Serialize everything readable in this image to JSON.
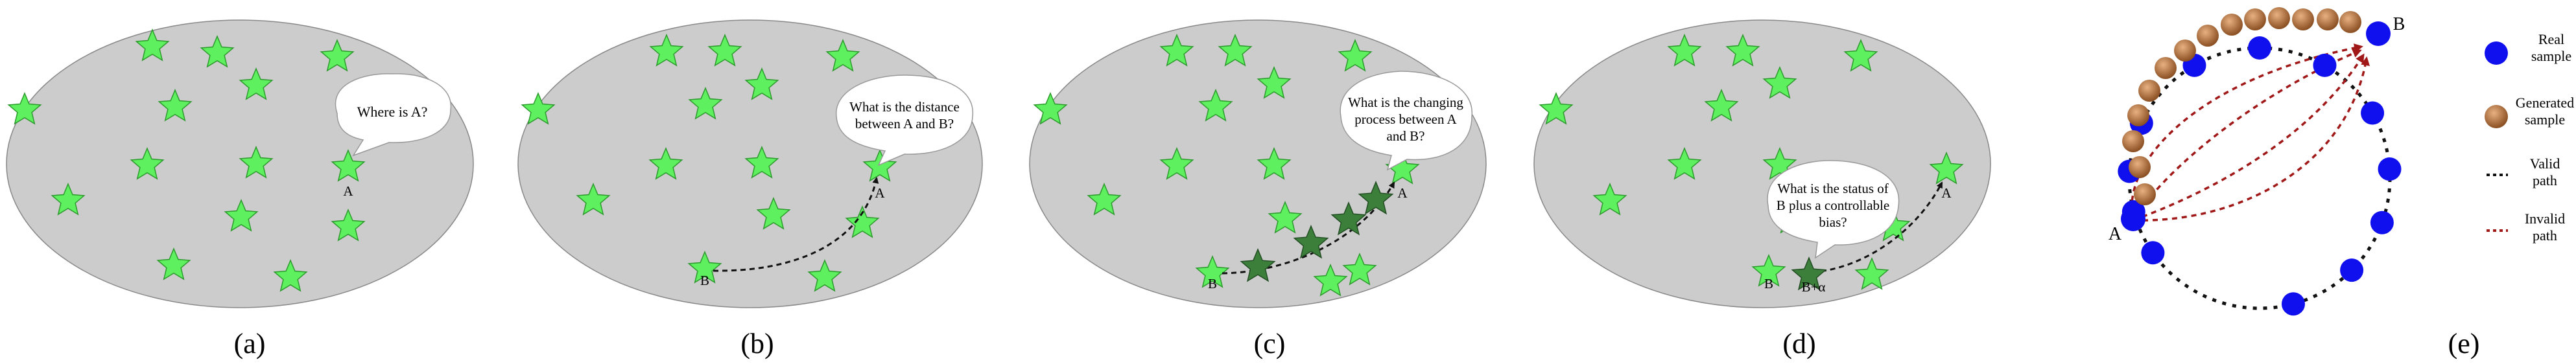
{
  "panels": [
    {
      "caption": "(a)",
      "bubble": [
        "Where is A?"
      ],
      "labels": {
        "A": "A"
      }
    },
    {
      "caption": "(b)",
      "bubble": [
        "What is the distance",
        "between A and B?"
      ],
      "labels": {
        "A": "A",
        "B": "B"
      }
    },
    {
      "caption": "(c)",
      "bubble": [
        "What is the changing",
        "process between A",
        "and B?"
      ],
      "labels": {
        "A": "A",
        "B": "B"
      }
    },
    {
      "caption": "(d)",
      "bubble": [
        "What is the status of",
        "B plus a controllable",
        "bias?"
      ],
      "labels": {
        "A": "A",
        "B": "B",
        "Bplus": "B+α"
      }
    },
    {
      "caption": "(e)",
      "labels": {
        "A": "A",
        "B": "B"
      }
    }
  ],
  "legend": [
    {
      "marker": "real-sample",
      "lines": [
        "Real",
        "sample"
      ]
    },
    {
      "marker": "generated-sample",
      "lines": [
        "Generated",
        "sample"
      ]
    },
    {
      "marker": "valid-path",
      "lines": [
        "Valid",
        "path"
      ]
    },
    {
      "marker": "invalid-path",
      "lines": [
        "Invalid",
        "path"
      ]
    }
  ],
  "colors": {
    "ellipse": "#cccccc",
    "star": "#5ef05e",
    "star_dark": "#3b7f3b",
    "real_sample": "#1010ee",
    "generated_sample": "#b5733a",
    "invalid_path": "#a01818",
    "valid_path": "#111111"
  }
}
